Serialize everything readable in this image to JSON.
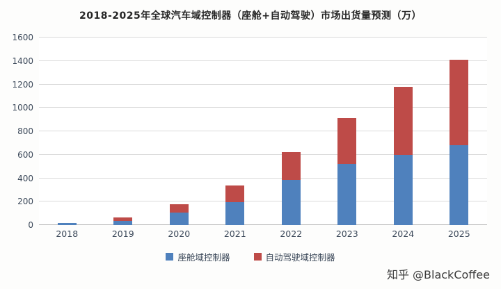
{
  "chart_data": {
    "type": "bar",
    "stacked": true,
    "title": "2018-2025年全球汽车域控制器（座舱+自动驾驶）市场出货量预测（万）",
    "categories": [
      "2018",
      "2019",
      "2020",
      "2021",
      "2022",
      "2023",
      "2024",
      "2025"
    ],
    "series": [
      {
        "name": "座舱域控制器",
        "color": "#4f81bd",
        "values": [
          15,
          35,
          105,
          195,
          385,
          520,
          600,
          680
        ]
      },
      {
        "name": "自动驾驶域控制器",
        "color": "#be4b48",
        "values": [
          5,
          30,
          75,
          140,
          240,
          390,
          580,
          730
        ]
      }
    ],
    "totals": [
      20,
      65,
      180,
      335,
      625,
      910,
      1180,
      1410
    ],
    "xlabel": "",
    "ylabel": "",
    "ylim": [
      0,
      1600
    ],
    "y_ticks": [
      0,
      200,
      400,
      600,
      800,
      1000,
      1200,
      1400,
      1600
    ],
    "grid": true,
    "legend_position": "bottom"
  },
  "watermark": "知乎 @BlackCoffee",
  "colors": {
    "cockpit_blue": "#4f81bd",
    "autonomous_red": "#be4b48",
    "gridline": "#d9d9d9",
    "axis_text": "#3b4859",
    "title_text": "#262626",
    "watermark_text": "#3a3a3a",
    "background": "#fdfdfc"
  }
}
